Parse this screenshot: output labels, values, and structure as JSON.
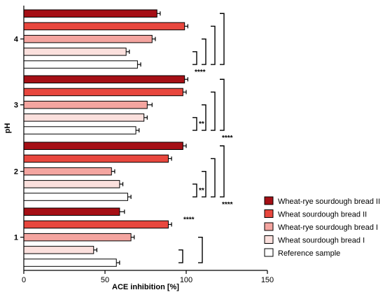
{
  "chart_data": {
    "type": "bar",
    "orientation": "horizontal",
    "xlabel": "ACE inhibition [%]",
    "ylabel": "pH",
    "xlim": [
      0,
      150
    ],
    "x_ticks": [
      0,
      50,
      100,
      150
    ],
    "categories": [
      "4",
      "3",
      "2",
      "1"
    ],
    "series": [
      {
        "name": "Wheat-rye sourdough bread II",
        "color": "#a50f15",
        "values": [
          82,
          99,
          98,
          59
        ],
        "errors": [
          2,
          2,
          2,
          3
        ]
      },
      {
        "name": "Wheat sourdough bread II",
        "color": "#e8473e",
        "values": [
          99,
          98,
          89,
          89
        ],
        "errors": [
          2,
          2,
          2,
          2
        ]
      },
      {
        "name": "Wheat-rye sourdough bread I",
        "color": "#f4a5a0",
        "values": [
          79,
          76,
          54,
          66
        ],
        "errors": [
          2,
          3,
          2,
          2
        ]
      },
      {
        "name": "Wheat sourdough bread I",
        "color": "#fbe0dd",
        "values": [
          63,
          74,
          59,
          43
        ],
        "errors": [
          2,
          2,
          2,
          2
        ]
      },
      {
        "name": "Reference sample",
        "color": "#ffffff",
        "values": [
          70,
          69,
          64,
          57
        ],
        "errors": [
          2,
          2,
          2,
          2
        ]
      }
    ],
    "significance": [
      {
        "group": "4",
        "pairs": [
          [
            3,
            4
          ],
          [
            2,
            4
          ],
          [
            1,
            4
          ],
          [
            0,
            4
          ]
        ],
        "labels": {
          "0": "****"
        }
      },
      {
        "group": "3",
        "pairs": [
          [
            3,
            4
          ],
          [
            2,
            4
          ],
          [
            1,
            4
          ],
          [
            0,
            4
          ]
        ],
        "labels": {
          "0": "**",
          "3": "****"
        }
      },
      {
        "group": "2",
        "pairs": [
          [
            3,
            4
          ],
          [
            2,
            4
          ],
          [
            1,
            4
          ],
          [
            0,
            4
          ]
        ],
        "labels": {
          "0": "**",
          "3": "****"
        }
      },
      {
        "group": "1",
        "pairs": [
          [
            3,
            4
          ],
          [
            2,
            4
          ]
        ],
        "labels": {},
        "top_label": "****"
      }
    ],
    "legend": {
      "position": "right"
    },
    "grid": false
  }
}
